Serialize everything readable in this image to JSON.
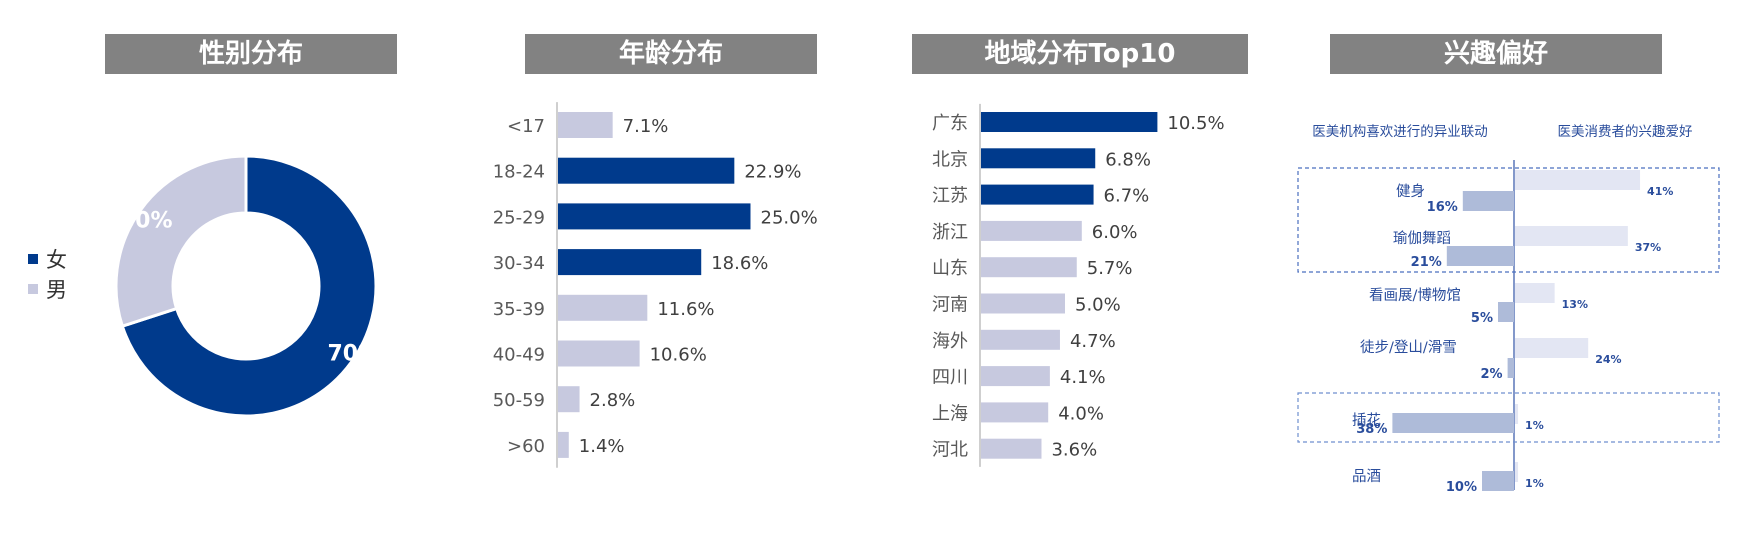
{
  "colors": {
    "primary": "#003a8c",
    "secondary": "#c7c9df",
    "header_bg": "#828282",
    "blue_text": "#2a4d9c",
    "light_bar": "#e3e6f3",
    "mid_bar": "#aebbd9"
  },
  "panels": {
    "gender": "性别分布",
    "age": "年龄分布",
    "region": "地域分布Top10",
    "interest": "兴趣偏好"
  },
  "interest_headers": {
    "left": "医美机构喜欢进行的异业联动",
    "right": "医美消费者的兴趣爱好"
  },
  "chart_data": [
    {
      "type": "pie",
      "title": "性别分布",
      "donut": true,
      "categories": [
        "女",
        "男"
      ],
      "values": [
        70,
        30
      ],
      "labels": [
        "70%",
        "30%"
      ],
      "legend": "left"
    },
    {
      "type": "bar",
      "orientation": "horizontal",
      "title": "年龄分布",
      "categories": [
        "<17",
        "18-24",
        "25-29",
        "30-34",
        "35-39",
        "40-49",
        "50-59",
        ">60"
      ],
      "values": [
        7.1,
        22.9,
        25.0,
        18.6,
        11.6,
        10.6,
        2.8,
        1.4
      ],
      "labels": [
        "7.1%",
        "22.9%",
        "25.0%",
        "18.6%",
        "11.6%",
        "10.6%",
        "2.8%",
        "1.4%"
      ],
      "highlight": [
        false,
        true,
        true,
        true,
        false,
        false,
        false,
        false
      ]
    },
    {
      "type": "bar",
      "orientation": "horizontal",
      "title": "地域分布Top10",
      "categories": [
        "广东",
        "北京",
        "江苏",
        "浙江",
        "山东",
        "河南",
        "海外",
        "四川",
        "上海",
        "河北"
      ],
      "values": [
        10.5,
        6.8,
        6.7,
        6.0,
        5.7,
        5.0,
        4.7,
        4.1,
        4.0,
        3.6
      ],
      "labels": [
        "10.5%",
        "6.8%",
        "6.7%",
        "6.0%",
        "5.7%",
        "5.0%",
        "4.7%",
        "4.1%",
        "4.0%",
        "3.6%"
      ],
      "highlight": [
        true,
        true,
        true,
        false,
        false,
        false,
        false,
        false,
        false,
        false
      ]
    },
    {
      "type": "bar",
      "orientation": "horizontal",
      "subtype": "butterfly",
      "title": "兴趣偏好",
      "categories": [
        "健身",
        "瑜伽舞蹈",
        "看画展/博物馆",
        "徒步/登山/滑雪",
        "插花",
        "品酒"
      ],
      "series": [
        {
          "name": "医美机构喜欢进行的异业联动",
          "values": [
            16,
            21,
            5,
            2,
            38,
            10
          ],
          "labels": [
            "16%",
            "21%",
            "5%",
            "2%",
            "38%",
            "10%"
          ]
        },
        {
          "name": "医美消费者的兴趣爱好",
          "values": [
            41,
            37,
            13,
            24,
            1,
            1
          ],
          "labels": [
            "41%",
            "37%",
            "13%",
            "24%",
            "1%",
            "1%"
          ]
        }
      ]
    }
  ]
}
